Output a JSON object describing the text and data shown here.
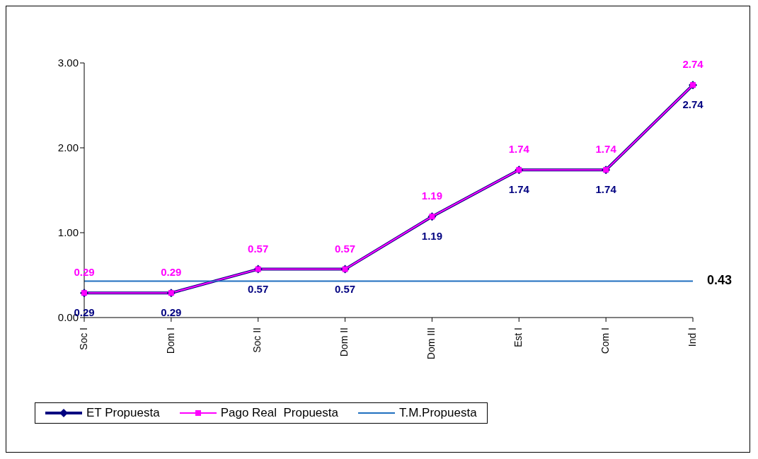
{
  "chart_data": {
    "type": "line",
    "categories": [
      "Soc I",
      "Dom I",
      "Soc II",
      "Dom II",
      "Dom III",
      "Est I",
      "Com I",
      "Ind I"
    ],
    "series": [
      {
        "name": "ET Propuesta",
        "color": "#000080",
        "marker": "diamond",
        "values": [
          0.29,
          0.29,
          0.57,
          0.57,
          1.19,
          1.74,
          1.74,
          2.74
        ],
        "value_labels": [
          "0.29",
          "0.29",
          "0.57",
          "0.57",
          "1.19",
          "1.74",
          "1.74",
          "2.74"
        ]
      },
      {
        "name": "Pago Real  Propuesta",
        "color": "#ff00ff",
        "marker": "square",
        "values": [
          0.29,
          0.29,
          0.57,
          0.57,
          1.19,
          1.74,
          1.74,
          2.74
        ],
        "value_labels": [
          "0.29",
          "0.29",
          "0.57",
          "0.57",
          "1.19",
          "1.74",
          "1.74",
          "2.74"
        ]
      },
      {
        "name": "T.M.Propuesta",
        "color": "#1f6fbf",
        "marker": "none",
        "values": [
          0.43,
          0.43,
          0.43,
          0.43,
          0.43,
          0.43,
          0.43,
          0.43
        ],
        "value_labels": [
          null,
          null,
          null,
          null,
          null,
          null,
          null,
          "0.43"
        ]
      }
    ],
    "ylim": [
      0,
      3
    ],
    "yticks": [
      {
        "value": 0,
        "label": "0.00"
      },
      {
        "value": 1,
        "label": "1.00"
      },
      {
        "value": 2,
        "label": "2.00"
      },
      {
        "value": 3,
        "label": "3.00"
      }
    ],
    "grid": false,
    "legend": "bottom"
  }
}
